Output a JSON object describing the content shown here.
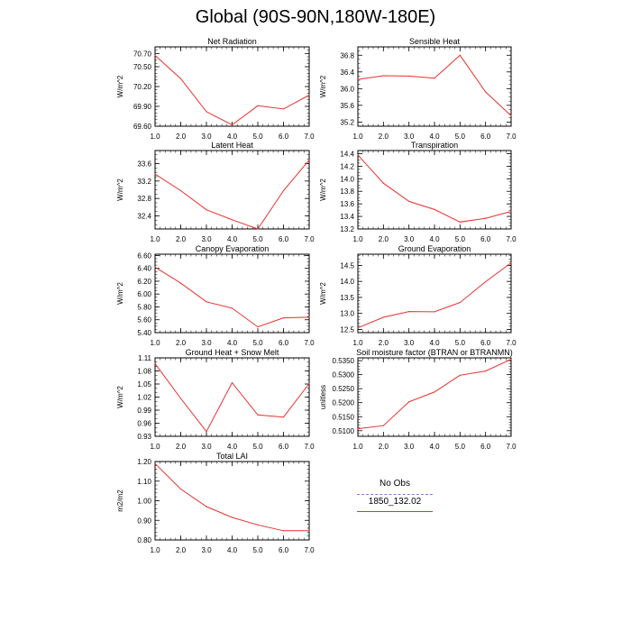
{
  "page": {
    "title": "Global (90S-90N,180W-180E)"
  },
  "legend": {
    "title": "No Obs",
    "entries": [
      {
        "label": "",
        "color": "#7b7bd8",
        "style": "dashed"
      },
      {
        "label": "1850_132.02",
        "color": "#e83030",
        "style": "solid"
      }
    ]
  },
  "chart_data": [
    {
      "id": "net-radiation",
      "type": "line",
      "title": "Net Radiation",
      "ylabel": "W/m^2",
      "x": [
        1.0,
        2.0,
        3.0,
        4.0,
        5.0,
        6.0,
        7.0
      ],
      "xticks": [
        "1.0",
        "2.0",
        "3.0",
        "4.0",
        "5.0",
        "6.0",
        "7.0"
      ],
      "xlim": [
        1.0,
        7.0
      ],
      "ylim": [
        69.6,
        70.8
      ],
      "yticks": [
        {
          "v": 69.6,
          "label": "69.60"
        },
        {
          "v": 69.9,
          "label": "69.90"
        },
        {
          "v": 70.2,
          "label": "70.20"
        },
        {
          "v": 70.5,
          "label": "70.50"
        },
        {
          "v": 70.7,
          "label": "70.70"
        }
      ],
      "yminor": 0.05,
      "series": [
        {
          "name": "1850_132.02",
          "color": "#e83030",
          "values": [
            70.67,
            70.32,
            69.82,
            69.62,
            69.91,
            69.86,
            70.07
          ]
        }
      ]
    },
    {
      "id": "sensible-heat",
      "type": "line",
      "title": "Sensible Heat",
      "ylabel": "W/m^2",
      "x": [
        1.0,
        2.0,
        3.0,
        4.0,
        5.0,
        6.0,
        7.0
      ],
      "xticks": [
        "1.0",
        "2.0",
        "3.0",
        "4.0",
        "5.0",
        "6.0",
        "7.0"
      ],
      "xlim": [
        1.0,
        7.0
      ],
      "ylim": [
        35.1,
        37.0
      ],
      "yticks": [
        {
          "v": 35.2,
          "label": "35.2"
        },
        {
          "v": 35.6,
          "label": "35.6"
        },
        {
          "v": 36.0,
          "label": "36.0"
        },
        {
          "v": 36.4,
          "label": "36.4"
        },
        {
          "v": 36.8,
          "label": "36.8"
        }
      ],
      "yminor": 0.1,
      "series": [
        {
          "name": "1850_132.02",
          "color": "#e83030",
          "values": [
            36.22,
            36.31,
            36.3,
            36.25,
            36.8,
            35.92,
            35.35
          ]
        }
      ]
    },
    {
      "id": "latent-heat",
      "type": "line",
      "title": "Latent Heat",
      "ylabel": "W/m^2",
      "x": [
        1.0,
        2.0,
        3.0,
        4.0,
        5.0,
        6.0,
        7.0
      ],
      "xticks": [
        "1.0",
        "2.0",
        "3.0",
        "4.0",
        "5.0",
        "6.0",
        "7.0"
      ],
      "xlim": [
        1.0,
        7.0
      ],
      "ylim": [
        32.1,
        33.9
      ],
      "yticks": [
        {
          "v": 32.4,
          "label": "32.4"
        },
        {
          "v": 32.8,
          "label": "32.8"
        },
        {
          "v": 33.2,
          "label": "33.2"
        },
        {
          "v": 33.6,
          "label": "33.6"
        }
      ],
      "yminor": 0.1,
      "series": [
        {
          "name": "1850_132.02",
          "color": "#e83030",
          "values": [
            33.36,
            32.98,
            32.54,
            32.31,
            32.1,
            32.98,
            33.68
          ]
        }
      ]
    },
    {
      "id": "transpiration",
      "type": "line",
      "title": "Transpiration",
      "ylabel": "W/m^2",
      "x": [
        1.0,
        2.0,
        3.0,
        4.0,
        5.0,
        6.0,
        7.0
      ],
      "xticks": [
        "1.0",
        "2.0",
        "3.0",
        "4.0",
        "5.0",
        "6.0",
        "7.0"
      ],
      "xlim": [
        1.0,
        7.0
      ],
      "ylim": [
        13.2,
        14.45
      ],
      "yticks": [
        {
          "v": 13.2,
          "label": "13.2"
        },
        {
          "v": 13.4,
          "label": "13.4"
        },
        {
          "v": 13.6,
          "label": "13.6"
        },
        {
          "v": 13.8,
          "label": "13.8"
        },
        {
          "v": 14.0,
          "label": "14.0"
        },
        {
          "v": 14.2,
          "label": "14.2"
        },
        {
          "v": 14.4,
          "label": "14.4"
        }
      ],
      "yminor": 0.05,
      "series": [
        {
          "name": "1850_132.02",
          "color": "#e83030",
          "values": [
            14.38,
            13.93,
            13.64,
            13.51,
            13.31,
            13.37,
            13.48
          ]
        }
      ]
    },
    {
      "id": "canopy-evaporation",
      "type": "line",
      "title": "Canopy Evaporation",
      "ylabel": "W/m^2",
      "x": [
        1.0,
        2.0,
        3.0,
        4.0,
        5.0,
        6.0,
        7.0
      ],
      "xticks": [
        "1.0",
        "2.0",
        "3.0",
        "4.0",
        "5.0",
        "6.0",
        "7.0"
      ],
      "xlim": [
        1.0,
        7.0
      ],
      "ylim": [
        5.4,
        6.62
      ],
      "yticks": [
        {
          "v": 5.4,
          "label": "5.40"
        },
        {
          "v": 5.6,
          "label": "5.60"
        },
        {
          "v": 5.8,
          "label": "5.80"
        },
        {
          "v": 6.0,
          "label": "6.00"
        },
        {
          "v": 6.2,
          "label": "6.20"
        },
        {
          "v": 6.4,
          "label": "6.40"
        },
        {
          "v": 6.6,
          "label": "6.60"
        }
      ],
      "yminor": 0.05,
      "series": [
        {
          "name": "1850_132.02",
          "color": "#e83030",
          "values": [
            6.42,
            6.17,
            5.88,
            5.78,
            5.49,
            5.63,
            5.64
          ]
        }
      ]
    },
    {
      "id": "ground-evaporation",
      "type": "line",
      "title": "Ground Evaporation",
      "ylabel": "W/m^2",
      "x": [
        1.0,
        2.0,
        3.0,
        4.0,
        5.0,
        6.0,
        7.0
      ],
      "xticks": [
        "1.0",
        "2.0",
        "3.0",
        "4.0",
        "5.0",
        "6.0",
        "7.0"
      ],
      "xlim": [
        1.0,
        7.0
      ],
      "ylim": [
        12.4,
        14.85
      ],
      "yticks": [
        {
          "v": 12.5,
          "label": "12.5"
        },
        {
          "v": 13.0,
          "label": "13.0"
        },
        {
          "v": 13.5,
          "label": "13.5"
        },
        {
          "v": 14.0,
          "label": "14.0"
        },
        {
          "v": 14.5,
          "label": "14.5"
        }
      ],
      "yminor": 0.1,
      "series": [
        {
          "name": "1850_132.02",
          "color": "#e83030",
          "values": [
            12.55,
            12.88,
            13.06,
            13.05,
            13.34,
            13.99,
            14.58
          ]
        }
      ]
    },
    {
      "id": "ground-heat-snow-melt",
      "type": "line",
      "title": "Ground Heat + Snow Melt",
      "ylabel": "W/m^2",
      "x": [
        1.0,
        2.0,
        3.0,
        4.0,
        5.0,
        6.0,
        7.0
      ],
      "xticks": [
        "1.0",
        "2.0",
        "3.0",
        "4.0",
        "5.0",
        "6.0",
        "7.0"
      ],
      "xlim": [
        1.0,
        7.0
      ],
      "ylim": [
        0.93,
        1.11
      ],
      "yticks": [
        {
          "v": 0.93,
          "label": "0.93"
        },
        {
          "v": 0.96,
          "label": "0.96"
        },
        {
          "v": 0.99,
          "label": "0.99"
        },
        {
          "v": 1.02,
          "label": "1.02"
        },
        {
          "v": 1.05,
          "label": "1.05"
        },
        {
          "v": 1.08,
          "label": "1.08"
        },
        {
          "v": 1.11,
          "label": "1.11"
        }
      ],
      "yminor": 0.01,
      "series": [
        {
          "name": "1850_132.02",
          "color": "#e83030",
          "values": [
            1.097,
            1.017,
            0.941,
            1.053,
            0.979,
            0.974,
            1.051
          ]
        }
      ]
    },
    {
      "id": "soil-moisture-factor",
      "type": "line",
      "title": "Soil moisture factor (BTRAN or BTRANMN)",
      "ylabel": "unitless",
      "x": [
        1.0,
        2.0,
        3.0,
        4.0,
        5.0,
        6.0,
        7.0
      ],
      "xticks": [
        "1.0",
        "2.0",
        "3.0",
        "4.0",
        "5.0",
        "6.0",
        "7.0"
      ],
      "xlim": [
        1.0,
        7.0
      ],
      "ylim": [
        0.508,
        0.536
      ],
      "yticks": [
        {
          "v": 0.51,
          "label": "0.5100"
        },
        {
          "v": 0.515,
          "label": "0.5150"
        },
        {
          "v": 0.52,
          "label": "0.5200"
        },
        {
          "v": 0.525,
          "label": "0.5250"
        },
        {
          "v": 0.53,
          "label": "0.5300"
        },
        {
          "v": 0.535,
          "label": "0.5350"
        }
      ],
      "yminor": 0.001,
      "series": [
        {
          "name": "1850_132.02",
          "color": "#e83030",
          "values": [
            0.5107,
            0.5118,
            0.5203,
            0.5238,
            0.5298,
            0.5313,
            0.5355
          ]
        }
      ]
    },
    {
      "id": "total-lai",
      "type": "line",
      "title": "Total LAI",
      "ylabel": "m2/m2",
      "x": [
        1.0,
        2.0,
        3.0,
        4.0,
        5.0,
        6.0,
        7.0
      ],
      "xticks": [
        "1.0",
        "2.0",
        "3.0",
        "4.0",
        "5.0",
        "6.0",
        "7.0"
      ],
      "xlim": [
        1.0,
        7.0
      ],
      "ylim": [
        0.8,
        1.2
      ],
      "yticks": [
        {
          "v": 0.8,
          "label": "0.80"
        },
        {
          "v": 0.9,
          "label": "0.90"
        },
        {
          "v": 1.0,
          "label": "1.00"
        },
        {
          "v": 1.1,
          "label": "1.10"
        },
        {
          "v": 1.2,
          "label": "1.20"
        }
      ],
      "yminor": 0.02,
      "series": [
        {
          "name": "1850_132.02",
          "color": "#e83030",
          "values": [
            1.19,
            1.06,
            0.97,
            0.915,
            0.877,
            0.847,
            0.847
          ]
        }
      ]
    }
  ]
}
